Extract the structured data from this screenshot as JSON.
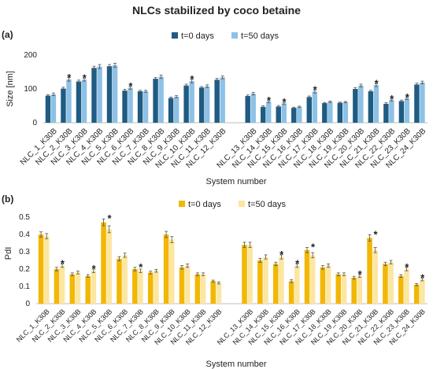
{
  "figure_title": "NLCs stabilized by coco betaine",
  "chart_data": [
    {
      "type": "bar",
      "panel_label": "(a)",
      "categories": [
        "NLC_1_K30B",
        "NLC_2_K30B",
        "NLC_3_K30B",
        "NLC_4_K30B",
        "NLC_5_K30B",
        "NLC_6_K30B",
        "NLC_7_K30B",
        "NLC_8_K30B",
        "NLC_9_K30B",
        "NLC_10_K30B",
        "NLC_11_K30B",
        "NLC_12_K30B",
        "NLC_13_K30B",
        "NLC_14_K30B",
        "NLC_15_K30B",
        "NLC_16_K30B",
        "NLC_17_K30B",
        "NLC_18_K30B",
        "NLC_19_K30B",
        "NLC_20_K30B",
        "NLC_21_K30B",
        "NLC_22_K30B",
        "NLC_23_K30B",
        "NLC_24_K30B"
      ],
      "series": [
        {
          "name": "t=0 days",
          "color": "#1f5b82",
          "values": [
            80,
            101,
            122,
            162,
            167,
            95,
            93,
            130,
            73,
            110,
            104,
            127,
            79,
            47,
            48,
            44,
            76,
            58,
            59,
            100,
            93,
            56,
            64,
            113
          ],
          "errors": [
            3,
            4,
            4,
            5,
            5,
            4,
            3,
            4,
            3,
            4,
            3,
            4,
            3,
            3,
            3,
            2,
            3,
            2,
            2,
            4,
            3,
            3,
            3,
            4
          ]
        },
        {
          "name": "t=50 days",
          "color": "#8ec1e6",
          "values": [
            84,
            128,
            127,
            166,
            170,
            103,
            93,
            136,
            77,
            123,
            108,
            134,
            86,
            62,
            57,
            47,
            92,
            62,
            61,
            110,
            111,
            67,
            72,
            119
          ],
          "errors": [
            4,
            5,
            4,
            6,
            6,
            4,
            3,
            5,
            3,
            5,
            4,
            4,
            4,
            3,
            3,
            2,
            4,
            2,
            2,
            4,
            4,
            3,
            3,
            4
          ]
        }
      ],
      "significance": [
        0,
        1,
        1,
        0,
        0,
        1,
        0,
        0,
        0,
        1,
        0,
        0,
        0,
        1,
        1,
        0,
        1,
        0,
        0,
        0,
        1,
        1,
        1,
        0
      ],
      "significance_marker": "*",
      "xlabel": "System number",
      "ylabel": "Size  [nm]",
      "ylim": [
        0,
        200
      ],
      "yticks": [
        "0",
        "100",
        "200"
      ],
      "legend_placement": "top-center",
      "grid": false
    },
    {
      "type": "bar",
      "panel_label": "(b)",
      "categories": [
        "NLC_1_K30B",
        "NLC_2_K30B",
        "NLC_3_K30B",
        "NLC_4_K30B",
        "NLC_5_K30B",
        "NLC_6_K30B",
        "NLC_7_K30B",
        "NLC_8_K30B",
        "NLC_9_K30B",
        "NLC_10_K30B",
        "NLC_11_K30B",
        "NLC_12_K30B",
        "NLC_13_K30B",
        "NLC_14_K30B",
        "NLC_15_K30B",
        "NLC_16_K30B",
        "NLC_17_K30B",
        "NLC_18_K30B",
        "NLC_19_K30B",
        "NLC_20_K30B",
        "NLC_21_K30B",
        "NLC_22_K30B",
        "NLC_23_K30B",
        "NLC_24_K30B"
      ],
      "series": [
        {
          "name": "t=0 days",
          "color": "#f2b705",
          "values": [
            0.4,
            0.2,
            0.17,
            0.16,
            0.47,
            0.26,
            0.2,
            0.18,
            0.4,
            0.21,
            0.17,
            0.13,
            0.34,
            0.25,
            0.23,
            0.13,
            0.31,
            0.21,
            0.17,
            0.15,
            0.38,
            0.23,
            0.16,
            0.11
          ],
          "errors": [
            0.015,
            0.01,
            0.008,
            0.008,
            0.02,
            0.012,
            0.01,
            0.008,
            0.018,
            0.01,
            0.008,
            0.006,
            0.015,
            0.012,
            0.01,
            0.008,
            0.015,
            0.01,
            0.008,
            0.008,
            0.018,
            0.01,
            0.008,
            0.006
          ]
        },
        {
          "name": "t=50 days",
          "color": "#fce6a0",
          "values": [
            0.39,
            0.22,
            0.18,
            0.19,
            0.43,
            0.28,
            0.19,
            0.19,
            0.37,
            0.22,
            0.17,
            0.12,
            0.34,
            0.27,
            0.27,
            0.22,
            0.28,
            0.22,
            0.17,
            0.16,
            0.31,
            0.24,
            0.2,
            0.14
          ],
          "errors": [
            0.015,
            0.01,
            0.008,
            0.01,
            0.02,
            0.012,
            0.01,
            0.008,
            0.018,
            0.01,
            0.008,
            0.006,
            0.015,
            0.012,
            0.012,
            0.01,
            0.015,
            0.01,
            0.008,
            0.008,
            0.015,
            0.01,
            0.01,
            0.008
          ]
        }
      ],
      "significance": [
        0,
        1,
        0,
        1,
        1,
        0,
        1,
        0,
        0,
        0,
        0,
        0,
        0,
        0,
        1,
        1,
        1,
        0,
        0,
        1,
        1,
        0,
        1,
        1
      ],
      "significance_marker": "*",
      "xlabel": "System number",
      "ylabel": "PdI",
      "ylim": [
        0,
        0.5
      ],
      "yticks": [
        "0",
        "0.1",
        "0.2",
        "0.3",
        "0.4",
        "0.5"
      ],
      "legend_placement": "top-center",
      "grid": false
    }
  ]
}
